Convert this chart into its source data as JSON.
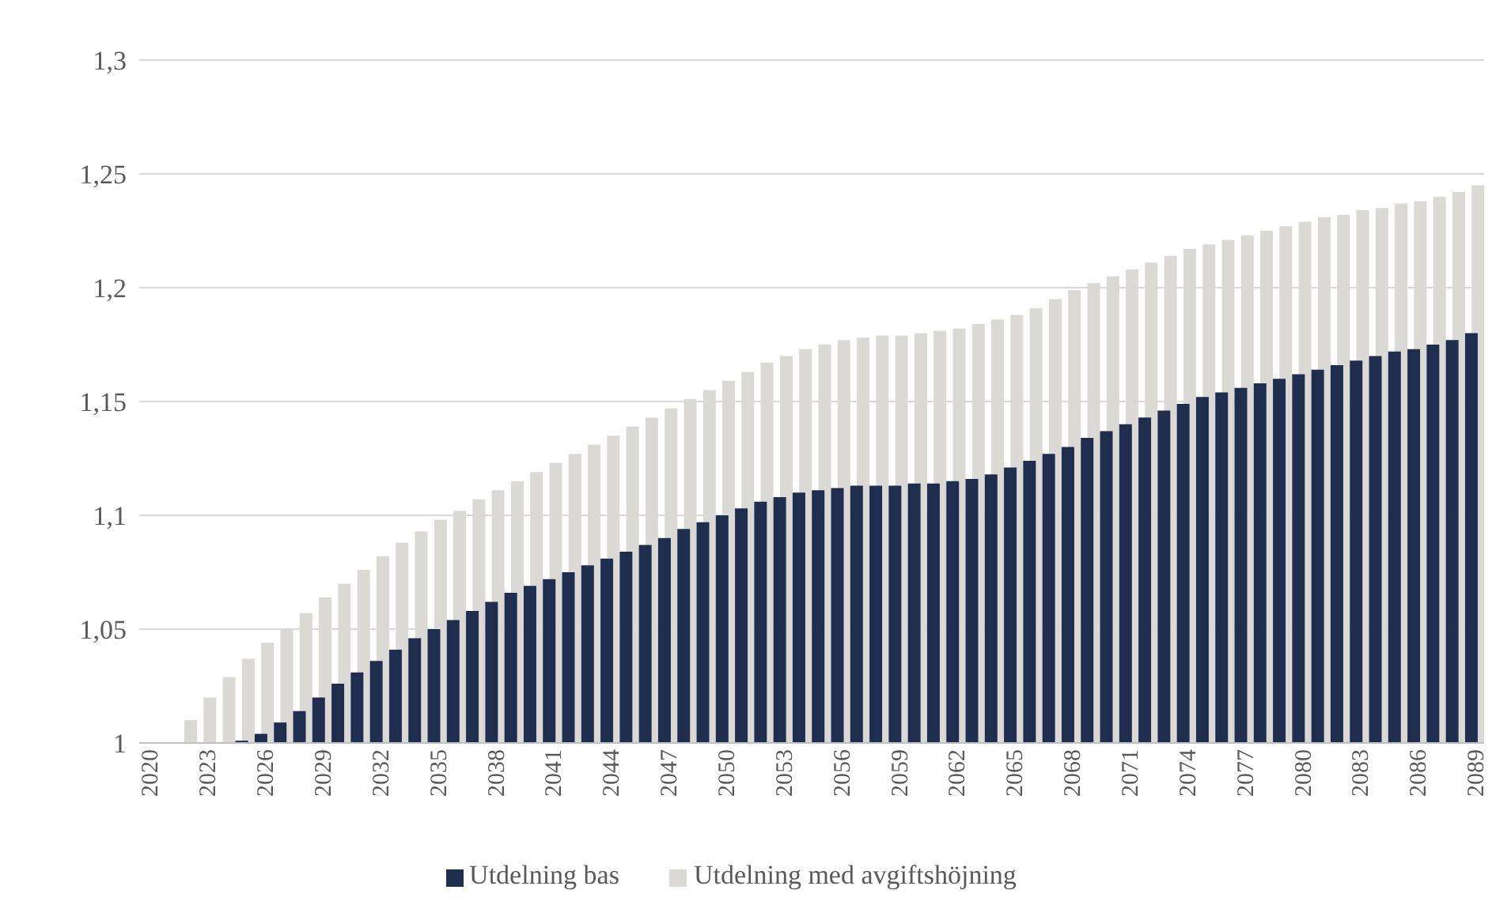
{
  "chart_data": {
    "type": "bar",
    "categories": [
      "2020",
      null,
      null,
      "2023",
      null,
      null,
      "2026",
      null,
      null,
      "2029",
      null,
      null,
      "2032",
      null,
      null,
      "2035",
      null,
      null,
      "2038",
      null,
      null,
      "2041",
      null,
      null,
      "2044",
      null,
      null,
      "2047",
      null,
      null,
      "2050",
      null,
      null,
      "2053",
      null,
      null,
      "2056",
      null,
      null,
      "2059",
      null,
      null,
      "2062",
      null,
      null,
      "2065",
      null,
      null,
      "2068",
      null,
      null,
      "2071",
      null,
      null,
      "2074",
      null,
      null,
      "2077",
      null,
      null,
      "2080",
      null,
      null,
      "2083",
      null,
      null,
      "2086",
      null,
      null,
      "2089"
    ],
    "series": [
      {
        "name": "Utdelning bas",
        "color": "#1f2d4e",
        "values": [
          1,
          1,
          1,
          1,
          1,
          1.001,
          1.004,
          1.009,
          1.014,
          1.02,
          1.026,
          1.031,
          1.036,
          1.041,
          1.046,
          1.05,
          1.054,
          1.058,
          1.062,
          1.066,
          1.069,
          1.072,
          1.075,
          1.078,
          1.081,
          1.084,
          1.087,
          1.09,
          1.094,
          1.097,
          1.1,
          1.103,
          1.106,
          1.108,
          1.11,
          1.111,
          1.112,
          1.113,
          1.113,
          1.113,
          1.114,
          1.114,
          1.115,
          1.116,
          1.118,
          1.121,
          1.124,
          1.127,
          1.13,
          1.134,
          1.137,
          1.14,
          1.143,
          1.146,
          1.149,
          1.152,
          1.154,
          1.156,
          1.158,
          1.16,
          1.162,
          1.164,
          1.166,
          1.168,
          1.17,
          1.172,
          1.173,
          1.175,
          1.177,
          1.18
        ]
      },
      {
        "name": "Utdelning med avgiftshöjning",
        "color": "#dad9d5",
        "values": [
          1,
          1,
          1.01,
          1.02,
          1.029,
          1.037,
          1.044,
          1.05,
          1.057,
          1.064,
          1.07,
          1.076,
          1.082,
          1.088,
          1.093,
          1.098,
          1.102,
          1.107,
          1.111,
          1.115,
          1.119,
          1.123,
          1.127,
          1.131,
          1.135,
          1.139,
          1.143,
          1.147,
          1.151,
          1.155,
          1.159,
          1.163,
          1.167,
          1.17,
          1.173,
          1.175,
          1.177,
          1.178,
          1.179,
          1.179,
          1.18,
          1.181,
          1.182,
          1.184,
          1.186,
          1.188,
          1.191,
          1.195,
          1.199,
          1.202,
          1.205,
          1.208,
          1.211,
          1.214,
          1.217,
          1.219,
          1.221,
          1.223,
          1.225,
          1.227,
          1.229,
          1.231,
          1.232,
          1.234,
          1.235,
          1.237,
          1.238,
          1.24,
          1.242,
          1.245
        ]
      }
    ],
    "ylim": [
      1,
      1.3
    ],
    "yticks": [
      {
        "value": 1,
        "label": "1"
      },
      {
        "value": 1.05,
        "label": "1,05"
      },
      {
        "value": 1.1,
        "label": "1,1"
      },
      {
        "value": 1.15,
        "label": "1,15"
      },
      {
        "value": 1.2,
        "label": "1,2"
      },
      {
        "value": 1.25,
        "label": "1,25"
      },
      {
        "value": 1.3,
        "label": "1,3"
      }
    ],
    "grid": "y",
    "legend": "bottom"
  }
}
